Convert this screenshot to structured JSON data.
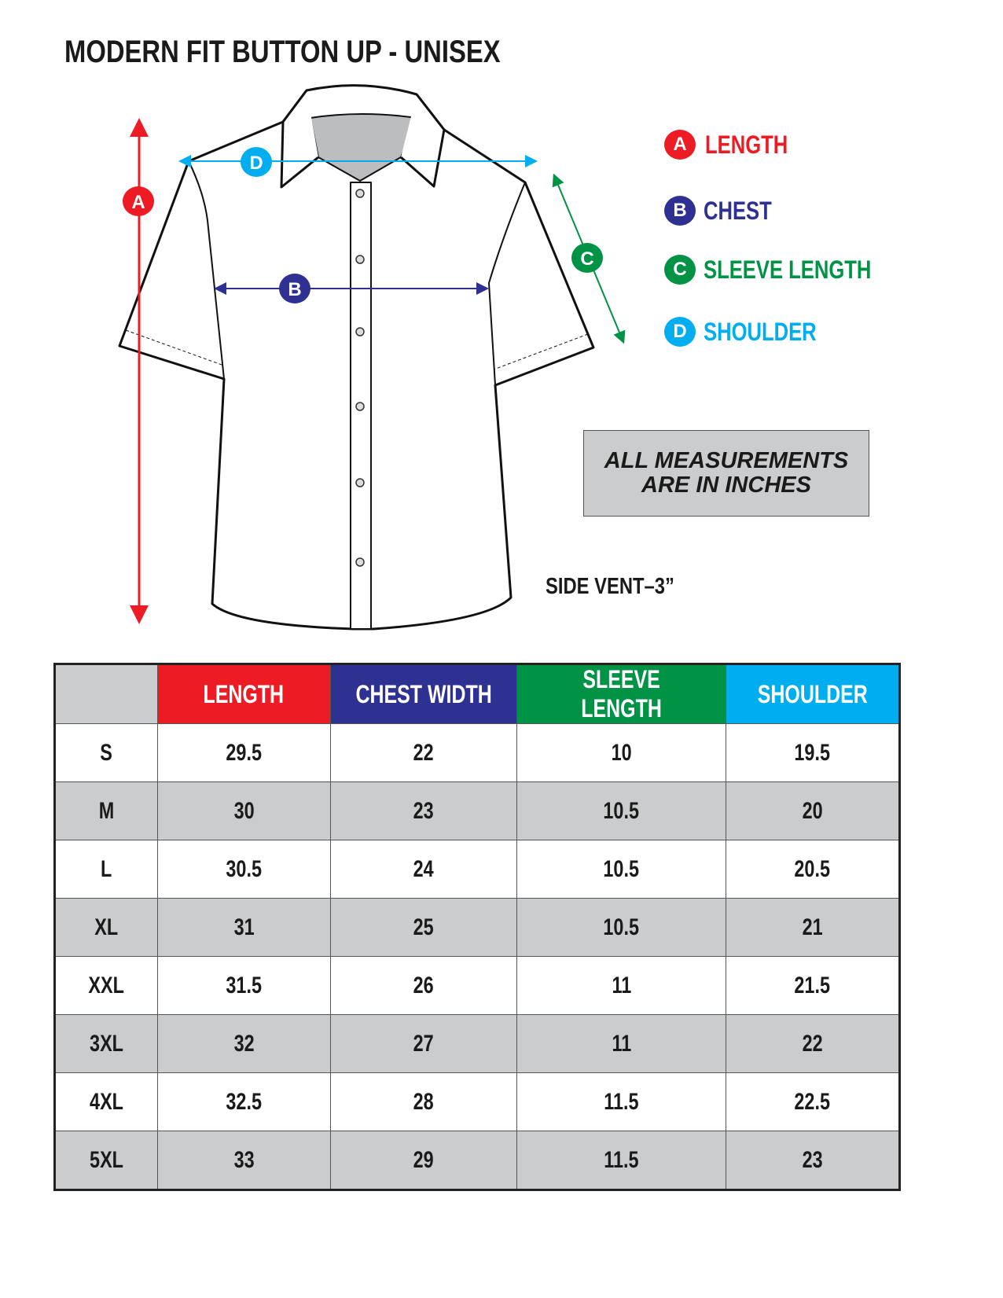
{
  "title": "MODERN FIT BUTTON UP - UNISEX",
  "colors": {
    "length": "#ed1c24",
    "chest": "#2e3192",
    "sleeve": "#009245",
    "shoulder": "#00aeef",
    "note_bg": "#cbcccd",
    "row_alt": "#cbcccd"
  },
  "diagram": {
    "markers": {
      "a": "A",
      "b": "B",
      "c": "C",
      "d": "D"
    }
  },
  "legend": [
    {
      "letter": "A",
      "label": "LENGTH"
    },
    {
      "letter": "B",
      "label": "CHEST"
    },
    {
      "letter": "C",
      "label": "SLEEVE LENGTH"
    },
    {
      "letter": "D",
      "label": "SHOULDER"
    }
  ],
  "note": {
    "line1": "ALL MEASUREMENTS",
    "line2": "ARE IN INCHES"
  },
  "side_vent": "SIDE VENT–3”",
  "table": {
    "headers": [
      "",
      "LENGTH",
      "CHEST WIDTH",
      "SLEEVE LENGTH",
      "SHOULDER"
    ],
    "rows": [
      [
        "S",
        "29.5",
        "22",
        "10",
        "19.5"
      ],
      [
        "M",
        "30",
        "23",
        "10.5",
        "20"
      ],
      [
        "L",
        "30.5",
        "24",
        "10.5",
        "20.5"
      ],
      [
        "XL",
        "31",
        "25",
        "10.5",
        "21"
      ],
      [
        "XXL",
        "31.5",
        "26",
        "11",
        "21.5"
      ],
      [
        "3XL",
        "32",
        "27",
        "11",
        "22"
      ],
      [
        "4XL",
        "32.5",
        "28",
        "11.5",
        "22.5"
      ],
      [
        "5XL",
        "33",
        "29",
        "11.5",
        "23"
      ]
    ]
  }
}
